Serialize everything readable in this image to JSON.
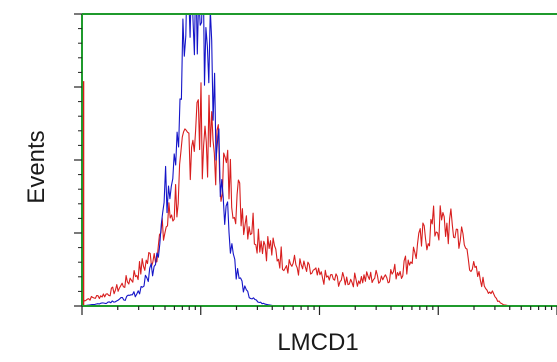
{
  "chart_data": {
    "type": "line",
    "title": "",
    "xlabel": "LMCD1",
    "ylabel": "Events",
    "x_scale": "log",
    "xlim": [
      1,
      10000
    ],
    "ylim": [
      0,
      100
    ],
    "grid": false,
    "legend": "none",
    "frame_color": "#1f9a2c",
    "series": [
      {
        "color": "#1515c8",
        "x": [
          1,
          1.5,
          2,
          2.5,
          3,
          3.5,
          4,
          4.5,
          5,
          5.5,
          6,
          6.5,
          7,
          7.5,
          8,
          8.5,
          9,
          10,
          11,
          12,
          13,
          14,
          16,
          18,
          20,
          23,
          26,
          30,
          35,
          40,
          50
        ],
        "y": [
          0,
          1,
          2,
          3,
          5,
          9,
          15,
          24,
          37,
          48,
          58,
          70,
          82,
          92,
          100,
          100,
          100,
          100,
          96,
          88,
          72,
          55,
          38,
          23,
          12,
          6,
          3,
          1.5,
          0.6,
          0.2,
          0
        ]
      },
      {
        "color": "#d81e1e",
        "x": [
          1,
          1.3,
          1.6,
          2,
          2.5,
          3,
          3.5,
          4,
          5,
          6,
          7,
          8,
          9,
          10,
          12,
          14,
          16,
          19,
          22,
          26,
          30,
          40,
          50,
          70,
          100,
          140,
          200,
          300,
          400,
          500,
          600,
          700,
          800,
          900,
          1000,
          1200,
          1500,
          1800,
          2000,
          2500,
          3000,
          3500,
          4000
        ],
        "y": [
          2,
          3,
          4,
          6,
          9,
          12,
          15,
          18,
          26,
          35,
          46,
          58,
          64,
          61,
          56,
          51,
          46,
          40,
          34,
          29,
          25,
          19,
          16,
          13,
          10,
          9,
          9,
          10,
          11,
          13,
          17,
          21,
          25,
          27,
          28,
          27,
          25,
          17,
          12,
          7,
          3,
          0.5,
          0
        ]
      }
    ]
  }
}
